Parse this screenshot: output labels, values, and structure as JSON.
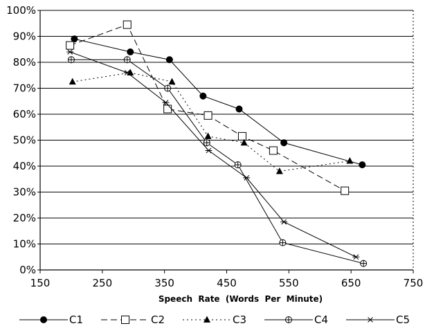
{
  "chart_data": {
    "type": "line",
    "title": "",
    "xlabel": "Speech  Rate  (Words  Per  Minute)",
    "ylabel": "",
    "xlim": [
      150,
      750
    ],
    "ylim": [
      0,
      100
    ],
    "x_ticks": [
      150,
      250,
      350,
      450,
      550,
      650,
      750
    ],
    "x_tick_labels": [
      "150",
      "250",
      "350",
      "450",
      "550",
      "650",
      "750"
    ],
    "y_ticks": [
      0,
      10,
      20,
      30,
      40,
      50,
      60,
      70,
      80,
      90,
      100
    ],
    "y_tick_labels": [
      "0%",
      "10%",
      "20%",
      "30%",
      "40%",
      "50%",
      "60%",
      "70%",
      "80%",
      "90%",
      "100%"
    ],
    "grid": "horizontal",
    "legend_position": "bottom",
    "series": [
      {
        "name": "C1",
        "marker": "filled-circle",
        "dash": "solid",
        "points": [
          [
            205,
            89
          ],
          [
            295,
            84
          ],
          [
            358,
            81
          ],
          [
            412,
            67
          ],
          [
            470,
            62
          ],
          [
            542,
            49
          ],
          [
            668,
            40.5
          ]
        ]
      },
      {
        "name": "C2",
        "marker": "open-square",
        "dash": "long-dash",
        "points": [
          [
            198,
            86.5
          ],
          [
            290,
            94.5
          ],
          [
            355,
            62
          ],
          [
            420,
            59.5
          ],
          [
            475,
            51.5
          ],
          [
            525,
            46
          ],
          [
            640,
            30.5
          ]
        ]
      },
      {
        "name": "C3",
        "marker": "filled-triangle",
        "dash": "dotted",
        "points": [
          [
            202,
            72.5
          ],
          [
            295,
            76
          ],
          [
            362,
            72.5
          ],
          [
            420,
            51.5
          ],
          [
            478,
            49
          ],
          [
            535,
            38
          ],
          [
            648,
            42
          ]
        ]
      },
      {
        "name": "C4",
        "marker": "open-crossed-circle",
        "dash": "solid",
        "points": [
          [
            200,
            81
          ],
          [
            290,
            81
          ],
          [
            355,
            70
          ],
          [
            418,
            49
          ],
          [
            468,
            40.5
          ],
          [
            540,
            10.5
          ],
          [
            670,
            2.5
          ]
        ]
      },
      {
        "name": "C5",
        "marker": "asterisk",
        "dash": "solid",
        "points": [
          [
            198,
            84
          ],
          [
            290,
            76
          ],
          [
            352,
            64.5
          ],
          [
            421,
            46
          ],
          [
            482,
            35.5
          ],
          [
            542,
            18.5
          ],
          [
            658,
            5
          ]
        ]
      }
    ]
  }
}
